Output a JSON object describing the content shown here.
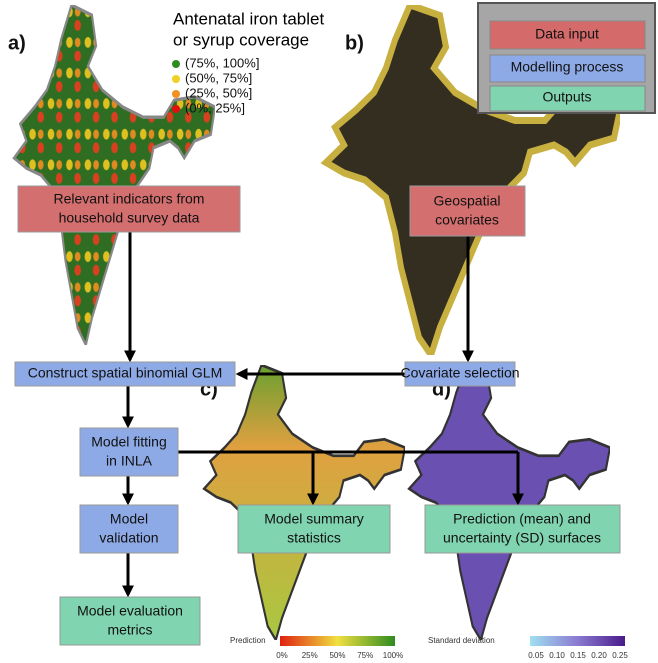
{
  "panels": {
    "a": "a)",
    "b": "b)",
    "c": "c)",
    "d": "d)"
  },
  "legend": {
    "title": [
      "Antenatal iron tablet",
      "or syrup coverage"
    ],
    "items": [
      "(75%, 100%]",
      "(50%, 75%]",
      "(25%, 50%]",
      "(0%, 25%]"
    ]
  },
  "key": [
    "Data input",
    "Modelling process",
    "Outputs"
  ],
  "boxes": {
    "indicators": [
      "Relevant indicators from",
      "household survey data"
    ],
    "covariates": [
      "Geospatial",
      "covariates"
    ],
    "glm": "Construct spatial binomial GLM",
    "selection": "Covariate selection",
    "fitting": [
      "Model fitting",
      "in INLA"
    ],
    "validation": [
      "Model",
      "validation"
    ],
    "metrics": [
      "Model evaluation",
      "metrics"
    ],
    "summary": [
      "Model summary",
      "statistics"
    ],
    "surfaces": [
      "Prediction (mean) and",
      "uncertainty (SD) surfaces"
    ]
  },
  "colorbars": {
    "prediction": {
      "title": "Prediction",
      "ticks": [
        "0%",
        "25%",
        "50%",
        "75%",
        "100%"
      ]
    },
    "sd": {
      "title": "Standard deviation",
      "ticks": [
        "0.05",
        "0.10",
        "0.15",
        "0.20",
        "0.25"
      ]
    }
  }
}
